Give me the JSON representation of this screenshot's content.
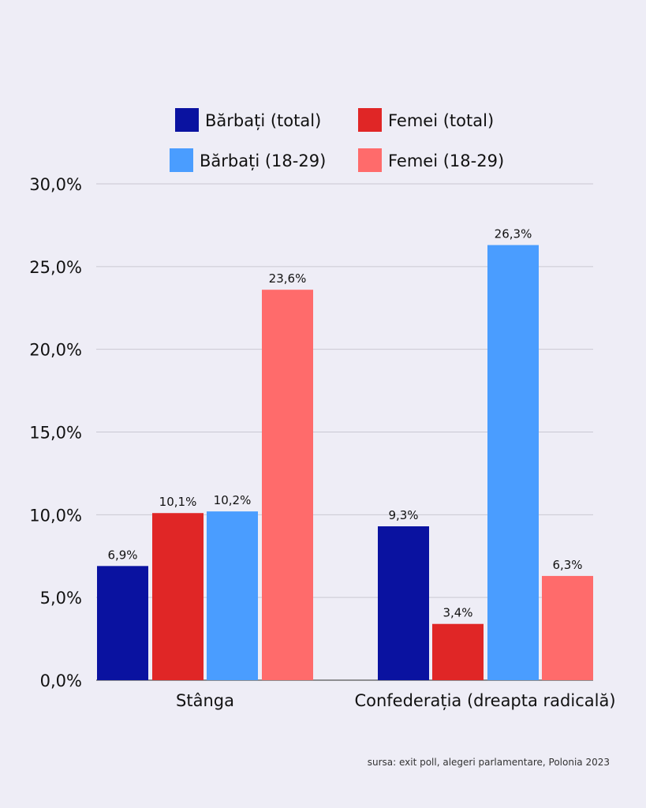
{
  "chart_data": {
    "type": "bar",
    "title": "",
    "xlabel": "",
    "ylabel": "",
    "ylim": [
      0,
      30
    ],
    "yticks": [
      "0,0%",
      "5,0%",
      "10,0%",
      "15,0%",
      "20,0%",
      "25,0%",
      "30,0%"
    ],
    "grid": true,
    "legend_position": "top-center",
    "categories": [
      "Stânga",
      "Confederația (dreapta radicală)"
    ],
    "series": [
      {
        "name": "Bărbați (total)",
        "color": "#0a12a0",
        "values": [
          6.9,
          9.3
        ],
        "labels": [
          "6,9%",
          "9,3%"
        ]
      },
      {
        "name": "Femei (total)",
        "color": "#e02626",
        "values": [
          10.1,
          3.4
        ],
        "labels": [
          "10,1%",
          "3,4%"
        ]
      },
      {
        "name": "Bărbați (18-29)",
        "color": "#4a9dff",
        "values": [
          10.2,
          26.3
        ],
        "labels": [
          "10,2%",
          "26,3%"
        ]
      },
      {
        "name": "Femei (18-29)",
        "color": "#ff6b6b",
        "values": [
          23.6,
          6.3
        ],
        "labels": [
          "23,6%",
          "6,3%"
        ]
      }
    ],
    "source": "sursa: exit poll, alegeri parlamentare, Polonia 2023"
  }
}
